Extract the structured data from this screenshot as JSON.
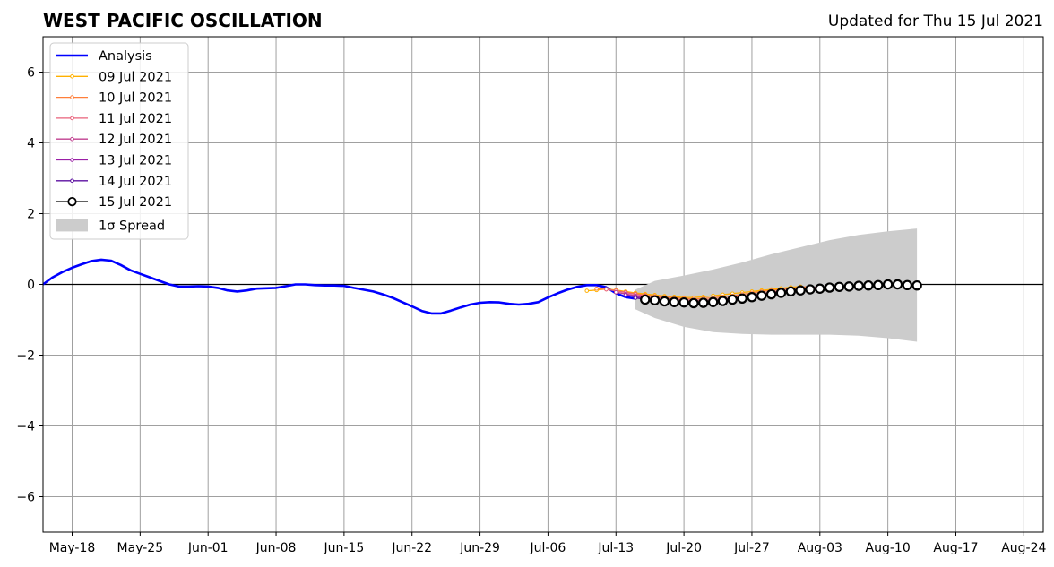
{
  "chart_data": {
    "type": "line",
    "title": "WEST PACIFIC OSCILLATION",
    "subtitle": "Updated for Thu 15 Jul 2021",
    "xlabel": "",
    "ylabel": "",
    "x_domain": [
      "2021-05-15",
      "2021-08-26"
    ],
    "ylim": [
      -7,
      7
    ],
    "grid": true,
    "legend_position": "top-left",
    "x_tick_dates": [
      "2021-05-18",
      "2021-05-25",
      "2021-06-01",
      "2021-06-08",
      "2021-06-15",
      "2021-06-22",
      "2021-06-29",
      "2021-07-06",
      "2021-07-13",
      "2021-07-20",
      "2021-07-27",
      "2021-08-03",
      "2021-08-10",
      "2021-08-17",
      "2021-08-24"
    ],
    "x_tick_labels": [
      "May-18",
      "May-25",
      "Jun-01",
      "Jun-08",
      "Jun-15",
      "Jun-22",
      "Jun-29",
      "Jul-06",
      "Jul-13",
      "Jul-20",
      "Jul-27",
      "Aug-03",
      "Aug-10",
      "Aug-17",
      "Aug-24"
    ],
    "y_ticks": [
      6,
      4,
      2,
      0,
      -2,
      -4,
      -6
    ],
    "y_tick_labels": [
      "6",
      "4",
      "2",
      "0",
      "−2",
      "−4",
      "−6"
    ],
    "series": [
      {
        "name": "Analysis",
        "color": "#0000ff",
        "x": [
          "2021-05-15",
          "2021-05-16",
          "2021-05-17",
          "2021-05-18",
          "2021-05-19",
          "2021-05-20",
          "2021-05-21",
          "2021-05-22",
          "2021-05-23",
          "2021-05-24",
          "2021-05-25",
          "2021-05-26",
          "2021-05-27",
          "2021-05-28",
          "2021-05-29",
          "2021-05-30",
          "2021-05-31",
          "2021-06-01",
          "2021-06-02",
          "2021-06-03",
          "2021-06-04",
          "2021-06-05",
          "2021-06-06",
          "2021-06-07",
          "2021-06-08",
          "2021-06-09",
          "2021-06-10",
          "2021-06-11",
          "2021-06-12",
          "2021-06-13",
          "2021-06-14",
          "2021-06-15",
          "2021-06-16",
          "2021-06-17",
          "2021-06-18",
          "2021-06-19",
          "2021-06-20",
          "2021-06-21",
          "2021-06-22",
          "2021-06-23",
          "2021-06-24",
          "2021-06-25",
          "2021-06-26",
          "2021-06-27",
          "2021-06-28",
          "2021-06-29",
          "2021-06-30",
          "2021-07-01",
          "2021-07-02",
          "2021-07-03",
          "2021-07-04",
          "2021-07-05",
          "2021-07-06",
          "2021-07-07",
          "2021-07-08",
          "2021-07-09",
          "2021-07-10",
          "2021-07-11",
          "2021-07-12",
          "2021-07-13",
          "2021-07-14",
          "2021-07-15"
        ],
        "values": [
          0.0,
          0.2,
          0.35,
          0.47,
          0.57,
          0.66,
          0.7,
          0.67,
          0.55,
          0.4,
          0.3,
          0.2,
          0.1,
          0.0,
          -0.06,
          -0.06,
          -0.05,
          -0.06,
          -0.1,
          -0.17,
          -0.2,
          -0.17,
          -0.12,
          -0.11,
          -0.1,
          -0.05,
          0.0,
          0.0,
          -0.02,
          -0.03,
          -0.03,
          -0.04,
          -0.1,
          -0.15,
          -0.2,
          -0.28,
          -0.38,
          -0.5,
          -0.62,
          -0.75,
          -0.82,
          -0.82,
          -0.74,
          -0.65,
          -0.57,
          -0.52,
          -0.5,
          -0.51,
          -0.55,
          -0.57,
          -0.55,
          -0.5,
          -0.37,
          -0.25,
          -0.15,
          -0.07,
          -0.02,
          -0.02,
          -0.08,
          -0.25,
          -0.36,
          -0.4
        ]
      },
      {
        "name": "09 Jul 2021",
        "color": "#ffb000",
        "x": [
          "2021-07-10",
          "2021-07-11",
          "2021-07-12",
          "2021-07-13",
          "2021-07-14",
          "2021-07-15",
          "2021-07-16",
          "2021-07-17",
          "2021-07-18",
          "2021-07-19",
          "2021-07-20",
          "2021-07-21",
          "2021-07-22",
          "2021-07-23",
          "2021-07-24",
          "2021-07-25",
          "2021-07-26",
          "2021-07-27",
          "2021-07-28",
          "2021-07-29",
          "2021-07-30",
          "2021-07-31",
          "2021-08-01"
        ],
        "values": [
          -0.18,
          -0.16,
          -0.13,
          -0.16,
          -0.2,
          -0.24,
          -0.27,
          -0.3,
          -0.33,
          -0.35,
          -0.37,
          -0.37,
          -0.35,
          -0.32,
          -0.29,
          -0.26,
          -0.23,
          -0.2,
          -0.17,
          -0.14,
          -0.11,
          -0.08,
          -0.06
        ]
      },
      {
        "name": "10 Jul 2021",
        "color": "#ff7f3a",
        "x": [
          "2021-07-11",
          "2021-07-12",
          "2021-07-13",
          "2021-07-14",
          "2021-07-15",
          "2021-07-16",
          "2021-07-17",
          "2021-07-18",
          "2021-07-19",
          "2021-07-20",
          "2021-07-21",
          "2021-07-22",
          "2021-07-23",
          "2021-07-24",
          "2021-07-25",
          "2021-07-26",
          "2021-07-27",
          "2021-07-28",
          "2021-07-29",
          "2021-07-30",
          "2021-07-31",
          "2021-08-01",
          "2021-08-02"
        ],
        "values": [
          -0.12,
          -0.14,
          -0.18,
          -0.22,
          -0.26,
          -0.3,
          -0.33,
          -0.36,
          -0.38,
          -0.4,
          -0.41,
          -0.4,
          -0.38,
          -0.35,
          -0.32,
          -0.28,
          -0.24,
          -0.2,
          -0.17,
          -0.14,
          -0.11,
          -0.08,
          -0.06
        ]
      },
      {
        "name": "11 Jul 2021",
        "color": "#e8607a",
        "x": [
          "2021-07-12",
          "2021-07-13",
          "2021-07-14",
          "2021-07-15",
          "2021-07-16",
          "2021-07-17",
          "2021-07-18",
          "2021-07-19",
          "2021-07-20",
          "2021-07-21",
          "2021-07-22",
          "2021-07-23",
          "2021-07-24",
          "2021-07-25",
          "2021-07-26",
          "2021-07-27",
          "2021-07-28",
          "2021-07-29",
          "2021-07-30",
          "2021-07-31",
          "2021-08-01",
          "2021-08-02",
          "2021-08-03"
        ],
        "values": [
          -0.14,
          -0.18,
          -0.23,
          -0.28,
          -0.32,
          -0.36,
          -0.39,
          -0.42,
          -0.44,
          -0.45,
          -0.45,
          -0.43,
          -0.41,
          -0.38,
          -0.34,
          -0.3,
          -0.26,
          -0.22,
          -0.18,
          -0.15,
          -0.12,
          -0.09,
          -0.07
        ]
      },
      {
        "name": "12 Jul 2021",
        "color": "#c03f8f",
        "x": [
          "2021-07-13",
          "2021-07-14",
          "2021-07-15",
          "2021-07-16",
          "2021-07-17",
          "2021-07-18",
          "2021-07-19",
          "2021-07-20",
          "2021-07-21",
          "2021-07-22",
          "2021-07-23",
          "2021-07-24",
          "2021-07-25",
          "2021-07-26",
          "2021-07-27",
          "2021-07-28",
          "2021-07-29",
          "2021-07-30",
          "2021-07-31",
          "2021-08-01",
          "2021-08-02",
          "2021-08-03",
          "2021-08-04"
        ],
        "values": [
          -0.22,
          -0.27,
          -0.32,
          -0.37,
          -0.41,
          -0.45,
          -0.48,
          -0.5,
          -0.51,
          -0.5,
          -0.48,
          -0.45,
          -0.41,
          -0.37,
          -0.32,
          -0.28,
          -0.24,
          -0.2,
          -0.16,
          -0.13,
          -0.1,
          -0.08,
          -0.06
        ]
      },
      {
        "name": "13 Jul 2021",
        "color": "#9a1fa6",
        "x": [
          "2021-07-14",
          "2021-07-15",
          "2021-07-16",
          "2021-07-17",
          "2021-07-18",
          "2021-07-19",
          "2021-07-20",
          "2021-07-21",
          "2021-07-22",
          "2021-07-23",
          "2021-07-24",
          "2021-07-25",
          "2021-07-26",
          "2021-07-27",
          "2021-07-28",
          "2021-07-29",
          "2021-07-30",
          "2021-07-31",
          "2021-08-01",
          "2021-08-02",
          "2021-08-03",
          "2021-08-04",
          "2021-08-05"
        ],
        "values": [
          -0.3,
          -0.35,
          -0.4,
          -0.45,
          -0.49,
          -0.52,
          -0.54,
          -0.55,
          -0.54,
          -0.52,
          -0.49,
          -0.45,
          -0.41,
          -0.36,
          -0.31,
          -0.27,
          -0.23,
          -0.19,
          -0.15,
          -0.12,
          -0.09,
          -0.07,
          -0.05
        ]
      },
      {
        "name": "14 Jul 2021",
        "color": "#5b0fa0",
        "x": [
          "2021-07-15",
          "2021-07-16",
          "2021-07-17",
          "2021-07-18",
          "2021-07-19",
          "2021-07-20",
          "2021-07-21",
          "2021-07-22",
          "2021-07-23",
          "2021-07-24",
          "2021-07-25",
          "2021-07-26",
          "2021-07-27",
          "2021-07-28",
          "2021-07-29",
          "2021-07-30",
          "2021-07-31",
          "2021-08-01",
          "2021-08-02",
          "2021-08-03",
          "2021-08-04",
          "2021-08-05",
          "2021-08-06"
        ],
        "values": [
          -0.38,
          -0.43,
          -0.47,
          -0.5,
          -0.52,
          -0.54,
          -0.55,
          -0.55,
          -0.53,
          -0.5,
          -0.46,
          -0.42,
          -0.37,
          -0.33,
          -0.28,
          -0.24,
          -0.2,
          -0.16,
          -0.13,
          -0.1,
          -0.08,
          -0.06,
          -0.04
        ]
      },
      {
        "name": "15 Jul 2021",
        "color": "#000000",
        "x": [
          "2021-07-16",
          "2021-07-17",
          "2021-07-18",
          "2021-07-19",
          "2021-07-20",
          "2021-07-21",
          "2021-07-22",
          "2021-07-23",
          "2021-07-24",
          "2021-07-25",
          "2021-07-26",
          "2021-07-27",
          "2021-07-28",
          "2021-07-29",
          "2021-07-30",
          "2021-07-31",
          "2021-08-01",
          "2021-08-02",
          "2021-08-03",
          "2021-08-04",
          "2021-08-05",
          "2021-08-06",
          "2021-08-07",
          "2021-08-08",
          "2021-08-09",
          "2021-08-10",
          "2021-08-11",
          "2021-08-12",
          "2021-08-13"
        ],
        "values": [
          -0.43,
          -0.45,
          -0.48,
          -0.5,
          -0.51,
          -0.53,
          -0.52,
          -0.5,
          -0.47,
          -0.43,
          -0.4,
          -0.36,
          -0.32,
          -0.28,
          -0.24,
          -0.2,
          -0.17,
          -0.14,
          -0.12,
          -0.09,
          -0.07,
          -0.06,
          -0.04,
          -0.03,
          -0.02,
          0.0,
          0.0,
          -0.02,
          -0.03
        ]
      }
    ],
    "spread": {
      "name": "1σ Spread",
      "color": "#cccccc",
      "x": [
        "2021-07-15",
        "2021-07-17",
        "2021-07-20",
        "2021-07-23",
        "2021-07-26",
        "2021-07-29",
        "2021-08-01",
        "2021-08-04",
        "2021-08-07",
        "2021-08-10",
        "2021-08-13"
      ],
      "upper": [
        -0.15,
        0.1,
        0.25,
        0.42,
        0.62,
        0.85,
        1.05,
        1.25,
        1.4,
        1.5,
        1.58
      ],
      "lower": [
        -0.7,
        -0.95,
        -1.2,
        -1.35,
        -1.4,
        -1.42,
        -1.42,
        -1.42,
        -1.45,
        -1.52,
        -1.62
      ]
    }
  }
}
